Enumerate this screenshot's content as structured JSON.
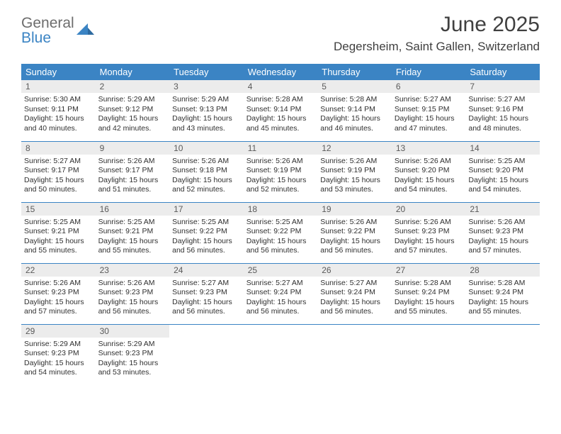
{
  "logo": {
    "word1": "General",
    "word2": "Blue",
    "color1": "#6d6d6d",
    "color2": "#3b84c4"
  },
  "title": "June 2025",
  "location": "Degersheim, Saint Gallen, Switzerland",
  "style": {
    "header_bg": "#3b84c4",
    "header_text": "#ffffff",
    "daynum_bg": "#ececec",
    "border_color": "#3b84c4",
    "body_text": "#303030",
    "title_color": "#404040",
    "header_font_size": 13,
    "daynum_font_size": 12,
    "body_font_size": 10.5,
    "title_font_size": 30,
    "location_font_size": 17
  },
  "weekdays": [
    "Sunday",
    "Monday",
    "Tuesday",
    "Wednesday",
    "Thursday",
    "Friday",
    "Saturday"
  ],
  "days": [
    {
      "n": "1",
      "sr": "5:30 AM",
      "ss": "9:11 PM",
      "dl": "15 hours and 40 minutes."
    },
    {
      "n": "2",
      "sr": "5:29 AM",
      "ss": "9:12 PM",
      "dl": "15 hours and 42 minutes."
    },
    {
      "n": "3",
      "sr": "5:29 AM",
      "ss": "9:13 PM",
      "dl": "15 hours and 43 minutes."
    },
    {
      "n": "4",
      "sr": "5:28 AM",
      "ss": "9:14 PM",
      "dl": "15 hours and 45 minutes."
    },
    {
      "n": "5",
      "sr": "5:28 AM",
      "ss": "9:14 PM",
      "dl": "15 hours and 46 minutes."
    },
    {
      "n": "6",
      "sr": "5:27 AM",
      "ss": "9:15 PM",
      "dl": "15 hours and 47 minutes."
    },
    {
      "n": "7",
      "sr": "5:27 AM",
      "ss": "9:16 PM",
      "dl": "15 hours and 48 minutes."
    },
    {
      "n": "8",
      "sr": "5:27 AM",
      "ss": "9:17 PM",
      "dl": "15 hours and 50 minutes."
    },
    {
      "n": "9",
      "sr": "5:26 AM",
      "ss": "9:17 PM",
      "dl": "15 hours and 51 minutes."
    },
    {
      "n": "10",
      "sr": "5:26 AM",
      "ss": "9:18 PM",
      "dl": "15 hours and 52 minutes."
    },
    {
      "n": "11",
      "sr": "5:26 AM",
      "ss": "9:19 PM",
      "dl": "15 hours and 52 minutes."
    },
    {
      "n": "12",
      "sr": "5:26 AM",
      "ss": "9:19 PM",
      "dl": "15 hours and 53 minutes."
    },
    {
      "n": "13",
      "sr": "5:26 AM",
      "ss": "9:20 PM",
      "dl": "15 hours and 54 minutes."
    },
    {
      "n": "14",
      "sr": "5:25 AM",
      "ss": "9:20 PM",
      "dl": "15 hours and 54 minutes."
    },
    {
      "n": "15",
      "sr": "5:25 AM",
      "ss": "9:21 PM",
      "dl": "15 hours and 55 minutes."
    },
    {
      "n": "16",
      "sr": "5:25 AM",
      "ss": "9:21 PM",
      "dl": "15 hours and 55 minutes."
    },
    {
      "n": "17",
      "sr": "5:25 AM",
      "ss": "9:22 PM",
      "dl": "15 hours and 56 minutes."
    },
    {
      "n": "18",
      "sr": "5:25 AM",
      "ss": "9:22 PM",
      "dl": "15 hours and 56 minutes."
    },
    {
      "n": "19",
      "sr": "5:26 AM",
      "ss": "9:22 PM",
      "dl": "15 hours and 56 minutes."
    },
    {
      "n": "20",
      "sr": "5:26 AM",
      "ss": "9:23 PM",
      "dl": "15 hours and 57 minutes."
    },
    {
      "n": "21",
      "sr": "5:26 AM",
      "ss": "9:23 PM",
      "dl": "15 hours and 57 minutes."
    },
    {
      "n": "22",
      "sr": "5:26 AM",
      "ss": "9:23 PM",
      "dl": "15 hours and 57 minutes."
    },
    {
      "n": "23",
      "sr": "5:26 AM",
      "ss": "9:23 PM",
      "dl": "15 hours and 56 minutes."
    },
    {
      "n": "24",
      "sr": "5:27 AM",
      "ss": "9:23 PM",
      "dl": "15 hours and 56 minutes."
    },
    {
      "n": "25",
      "sr": "5:27 AM",
      "ss": "9:24 PM",
      "dl": "15 hours and 56 minutes."
    },
    {
      "n": "26",
      "sr": "5:27 AM",
      "ss": "9:24 PM",
      "dl": "15 hours and 56 minutes."
    },
    {
      "n": "27",
      "sr": "5:28 AM",
      "ss": "9:24 PM",
      "dl": "15 hours and 55 minutes."
    },
    {
      "n": "28",
      "sr": "5:28 AM",
      "ss": "9:24 PM",
      "dl": "15 hours and 55 minutes."
    },
    {
      "n": "29",
      "sr": "5:29 AM",
      "ss": "9:23 PM",
      "dl": "15 hours and 54 minutes."
    },
    {
      "n": "30",
      "sr": "5:29 AM",
      "ss": "9:23 PM",
      "dl": "15 hours and 53 minutes."
    }
  ],
  "labels": {
    "sunrise": "Sunrise:",
    "sunset": "Sunset:",
    "daylight": "Daylight:"
  }
}
